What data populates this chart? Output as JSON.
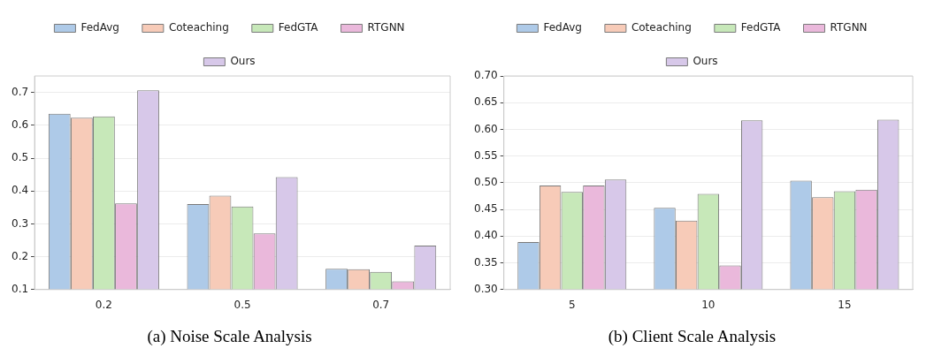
{
  "chart_data": [
    {
      "type": "bar",
      "title": "(a) Noise Scale Analysis",
      "categories": [
        "0.2",
        "0.5",
        "0.7"
      ],
      "series": [
        {
          "name": "FedAvg",
          "color": "#aecae8",
          "values": [
            0.635,
            0.36,
            0.163
          ]
        },
        {
          "name": "Coteaching",
          "color": "#f7cbb8",
          "values": [
            0.623,
            0.386,
            0.162
          ]
        },
        {
          "name": "FedGTA",
          "color": "#c7e8b9",
          "values": [
            0.627,
            0.353,
            0.154
          ]
        },
        {
          "name": "RTGNN",
          "color": "#eab8db",
          "values": [
            0.362,
            0.271,
            0.125
          ]
        },
        {
          "name": "Ours",
          "color": "#d7c8e9",
          "values": [
            0.706,
            0.442,
            0.234
          ]
        }
      ],
      "ylim": [
        0.1,
        0.75
      ],
      "yticks": [
        0.1,
        0.2,
        0.3,
        0.4,
        0.5,
        0.6,
        0.7
      ],
      "grid": "y",
      "legend": "top"
    },
    {
      "type": "bar",
      "title": "(b) Client Scale Analysis",
      "categories": [
        "5",
        "10",
        "15"
      ],
      "series": [
        {
          "name": "FedAvg",
          "color": "#aecae8",
          "values": [
            0.389,
            0.453,
            0.504
          ]
        },
        {
          "name": "Coteaching",
          "color": "#f7cbb8",
          "values": [
            0.495,
            0.429,
            0.473
          ]
        },
        {
          "name": "FedGTA",
          "color": "#c7e8b9",
          "values": [
            0.483,
            0.479,
            0.484
          ]
        },
        {
          "name": "RTGNN",
          "color": "#eab8db",
          "values": [
            0.495,
            0.345,
            0.487
          ]
        },
        {
          "name": "Ours",
          "color": "#d7c8e9",
          "values": [
            0.506,
            0.617,
            0.618
          ]
        }
      ],
      "ylim": [
        0.3,
        0.7
      ],
      "yticks": [
        {
          "value": 0.3,
          "label": "0.30"
        },
        {
          "value": 0.35,
          "label": "0.35"
        },
        {
          "value": 0.4,
          "label": "0.40"
        },
        {
          "value": 0.45,
          "label": "0.45"
        },
        {
          "value": 0.5,
          "label": "0.50"
        },
        {
          "value": 0.55,
          "label": "0.55"
        },
        {
          "value": 0.6,
          "label": "0.60"
        },
        {
          "value": 0.65,
          "label": "0.65"
        },
        {
          "value": 0.7,
          "label": "0.70"
        }
      ],
      "grid": "y",
      "legend": "top"
    }
  ]
}
